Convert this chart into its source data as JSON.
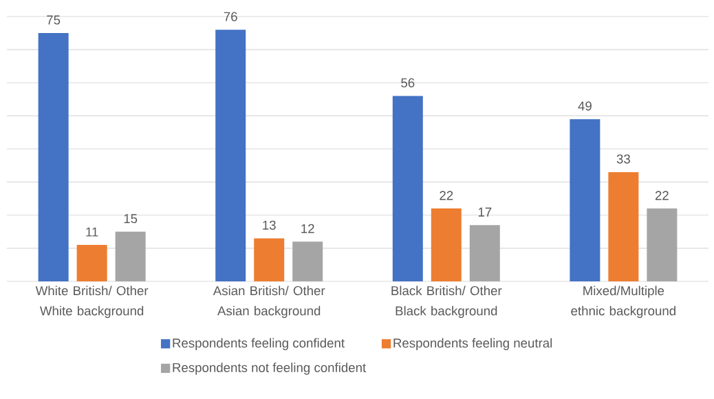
{
  "chart_data": {
    "type": "bar",
    "categories": [
      "White British/ Other White background",
      "Asian British/ Other Asian background",
      "Black British/ Other Black background",
      "Mixed/Multiple ethnic background"
    ],
    "series": [
      {
        "name": "Respondents feeling confident",
        "color": "#4472c4",
        "values": [
          75,
          76,
          56,
          49
        ]
      },
      {
        "name": "Respondents feeling neutral",
        "color": "#ed7d31",
        "values": [
          11,
          13,
          22,
          33
        ]
      },
      {
        "name": "Respondents not feeling confident",
        "color": "#a5a5a5",
        "values": [
          15,
          12,
          17,
          22
        ]
      }
    ],
    "ylim": [
      0,
      80
    ],
    "yticks": [
      {
        "value": 0,
        "label": null
      },
      {
        "value": 10,
        "label": null
      },
      {
        "value": 20,
        "label": null
      },
      {
        "value": 30,
        "label": null
      },
      {
        "value": 40,
        "label": null
      },
      {
        "value": 50,
        "label": null
      },
      {
        "value": 60,
        "label": null
      },
      {
        "value": 70,
        "label": null
      },
      {
        "value": 80,
        "label": null
      }
    ],
    "tick_labels": "x",
    "grid": "y",
    "legend": "bottom",
    "data_labels": true
  }
}
